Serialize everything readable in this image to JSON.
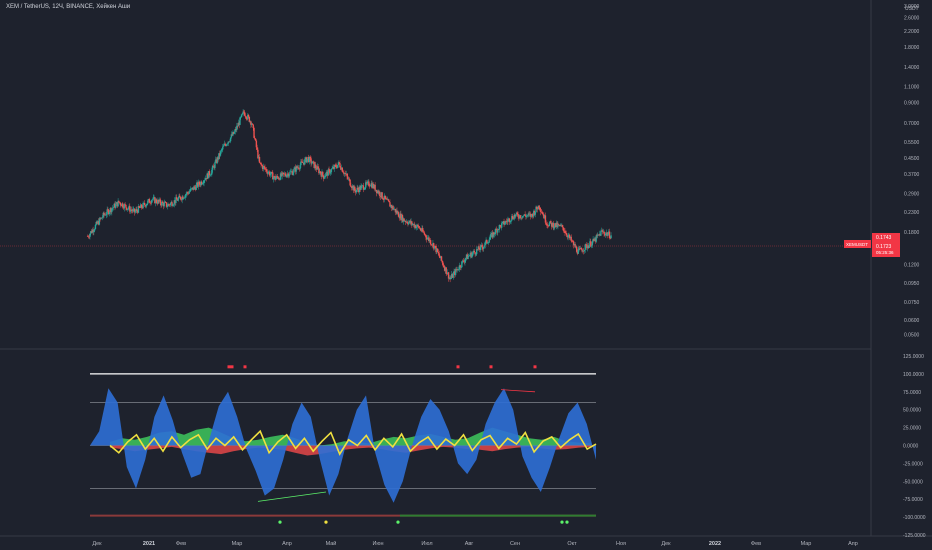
{
  "header": {
    "title": "XEM / TetherUS, 12Ч, BINANCE, Хейкен Аши"
  },
  "price_pane": {
    "currency": "USDT",
    "price_badge": {
      "symbol": "XEMUSDT",
      "price": "0.1723",
      "countdown": "05:25:36",
      "alt_price": "0.1743"
    }
  },
  "chart_data": [
    {
      "type": "candlestick",
      "title": "XEM / TetherUS, 12Ч, BINANCE, Хейкен Аши",
      "yscale": "log",
      "ylim": [
        0.045,
        3.0
      ],
      "ytick_labels": [
        "3.0000",
        "2.6000",
        "2.2000",
        "1.8000",
        "1.4000",
        "1.1000",
        "0.9000",
        "0.7000",
        "0.5500",
        "0.4500",
        "0.3700",
        "0.2900",
        "0.2300",
        "0.1800",
        "0.1200",
        "0.0950",
        "0.0750",
        "0.0600",
        "0.0500"
      ],
      "ytick_values": [
        3.0,
        2.6,
        2.2,
        1.8,
        1.4,
        1.1,
        0.9,
        0.7,
        0.55,
        0.45,
        0.37,
        0.29,
        0.23,
        0.18,
        0.12,
        0.095,
        0.075,
        0.06,
        0.05
      ],
      "xtick_labels": [
        "Дек",
        "2021",
        "Фев",
        "Мар",
        "Апр",
        "Май",
        "Июн",
        "Июл",
        "Авг",
        "Сен",
        "Окт",
        "Ноя",
        "Дек",
        "2022",
        "Фев",
        "Мар",
        "Апр"
      ],
      "series": [
        {
          "points": [
            [
              "Nov 25",
              0.17
            ],
            [
              "Dec 5",
              0.22
            ],
            [
              "Dec 15",
              0.26
            ],
            [
              "Dec 25",
              0.23
            ],
            [
              "Jan 5",
              0.27
            ],
            [
              "Jan 15",
              0.25
            ],
            [
              "Jan 25",
              0.28
            ],
            [
              "Feb 5",
              0.33
            ],
            [
              "Feb 12",
              0.38
            ],
            [
              "Feb 20",
              0.52
            ],
            [
              "Feb 27",
              0.62
            ],
            [
              "Mar 5",
              0.8
            ],
            [
              "Mar 10",
              0.7
            ],
            [
              "Mar 15",
              0.42
            ],
            [
              "Mar 25",
              0.35
            ],
            [
              "Apr 5",
              0.38
            ],
            [
              "Apr 15",
              0.45
            ],
            [
              "Apr 25",
              0.36
            ],
            [
              "May 5",
              0.42
            ],
            [
              "May 15",
              0.3
            ],
            [
              "May 25",
              0.33
            ],
            [
              "Jun 5",
              0.26
            ],
            [
              "Jun 15",
              0.21
            ],
            [
              "Jun 25",
              0.19
            ],
            [
              "Jul 5",
              0.15
            ],
            [
              "Jul 15",
              0.1
            ],
            [
              "Jul 25",
              0.13
            ],
            [
              "Aug 5",
              0.15
            ],
            [
              "Aug 15",
              0.19
            ],
            [
              "Aug 25",
              0.22
            ],
            [
              "Sep 5",
              0.22
            ],
            [
              "Sep 10",
              0.25
            ],
            [
              "Sep 15",
              0.2
            ],
            [
              "Sep 25",
              0.19
            ],
            [
              "Oct 5",
              0.14
            ],
            [
              "Oct 15",
              0.16
            ],
            [
              "Oct 20",
              0.18
            ],
            [
              "Oct 26",
              0.172
            ]
          ]
        }
      ]
    },
    {
      "type": "area",
      "ylim": [
        -125,
        125
      ],
      "ytick_labels": [
        "125.0000",
        "100.0000",
        "75.0000",
        "50.0000",
        "25.0000",
        "0.0000",
        "-25.0000",
        "-50.0000",
        "-75.0000",
        "-100.0000",
        "-125.0000"
      ],
      "ytick_values": [
        125,
        100,
        75,
        50,
        25,
        0,
        -25,
        -50,
        -75,
        -100,
        -125
      ],
      "levels": [
        100,
        60,
        0,
        -60
      ],
      "series": [
        {
          "name": "",
          "color": "#2d6fd6",
          "values": [
            0,
            20,
            80,
            60,
            -30,
            -60,
            -20,
            40,
            70,
            35,
            -10,
            -45,
            -40,
            10,
            55,
            75,
            40,
            -5,
            -35,
            -70,
            -60,
            -20,
            30,
            60,
            40,
            -20,
            -70,
            -40,
            10,
            50,
            70,
            -10,
            -55,
            -80,
            -50,
            0,
            40,
            65,
            50,
            20,
            -25,
            -40,
            -20,
            30,
            60,
            80,
            50,
            -15,
            -45,
            -65,
            -30,
            10,
            45,
            60,
            30,
            -20
          ]
        },
        {
          "name": "",
          "color": "#f0e040",
          "values": [
            0,
            -10,
            5,
            15,
            -5,
            10,
            -8,
            12,
            -3,
            8,
            15,
            -5,
            10,
            0,
            12,
            -6,
            8,
            20,
            -10,
            5,
            15,
            -4,
            10,
            -8,
            6,
            18,
            -12,
            8,
            0,
            14,
            -6,
            10,
            -2,
            16,
            -8,
            4,
            12,
            -5,
            9,
            0,
            15,
            -7,
            8,
            14,
            -4,
            10,
            2,
            18,
            -9,
            6,
            12,
            -3,
            8,
            16,
            -5,
            2
          ]
        },
        {
          "name": "",
          "color": "#3ec85e",
          "values": [
            5,
            10,
            8,
            12,
            18,
            20,
            15,
            22,
            25,
            18,
            10,
            6,
            8,
            12,
            15,
            10,
            4,
            0,
            2,
            6,
            5,
            3,
            8,
            12,
            10,
            14,
            16,
            12,
            8,
            10,
            18,
            25,
            20,
            15,
            10,
            8,
            12,
            6,
            4,
            3
          ]
        },
        {
          "name": "",
          "color": "#f04a4a",
          "values": [
            -3,
            -5,
            -8,
            -6,
            -4,
            -2,
            -5,
            -8,
            -10,
            -12,
            -8,
            -5,
            -3,
            -4,
            -6,
            -10,
            -14,
            -12,
            -9,
            -6,
            -4,
            -3,
            -5,
            -8,
            -10,
            -7,
            -4,
            -2,
            -3,
            -5,
            -6,
            -8,
            -5,
            -3,
            -2,
            -4,
            -6,
            -5,
            -3,
            -2
          ]
        }
      ]
    }
  ]
}
